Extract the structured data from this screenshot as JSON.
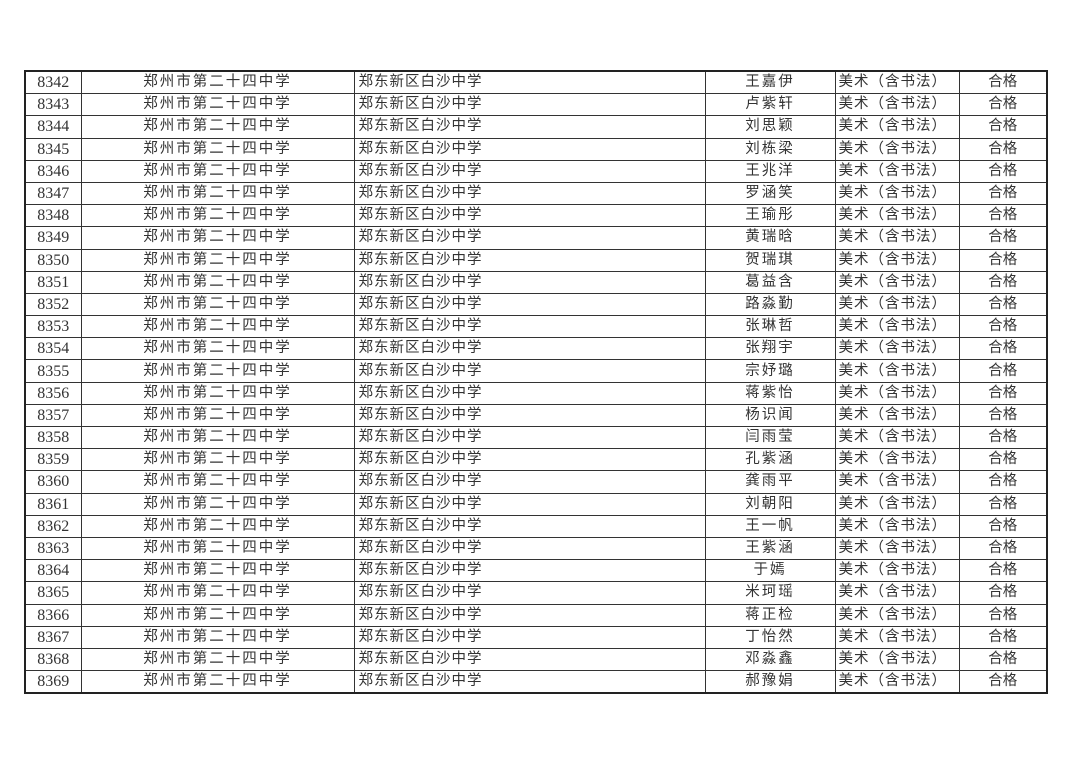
{
  "table": {
    "rows": [
      [
        "8342",
        "郑州市第二十四中学",
        "郑东新区白沙中学",
        "王嘉伊",
        "美术（含书法）",
        "合格"
      ],
      [
        "8343",
        "郑州市第二十四中学",
        "郑东新区白沙中学",
        "卢紫轩",
        "美术（含书法）",
        "合格"
      ],
      [
        "8344",
        "郑州市第二十四中学",
        "郑东新区白沙中学",
        "刘思颖",
        "美术（含书法）",
        "合格"
      ],
      [
        "8345",
        "郑州市第二十四中学",
        "郑东新区白沙中学",
        "刘栋梁",
        "美术（含书法）",
        "合格"
      ],
      [
        "8346",
        "郑州市第二十四中学",
        "郑东新区白沙中学",
        "王兆洋",
        "美术（含书法）",
        "合格"
      ],
      [
        "8347",
        "郑州市第二十四中学",
        "郑东新区白沙中学",
        "罗涵笑",
        "美术（含书法）",
        "合格"
      ],
      [
        "8348",
        "郑州市第二十四中学",
        "郑东新区白沙中学",
        "王瑜彤",
        "美术（含书法）",
        "合格"
      ],
      [
        "8349",
        "郑州市第二十四中学",
        "郑东新区白沙中学",
        "黄瑞晗",
        "美术（含书法）",
        "合格"
      ],
      [
        "8350",
        "郑州市第二十四中学",
        "郑东新区白沙中学",
        "贺瑞琪",
        "美术（含书法）",
        "合格"
      ],
      [
        "8351",
        "郑州市第二十四中学",
        "郑东新区白沙中学",
        "葛益含",
        "美术（含书法）",
        "合格"
      ],
      [
        "8352",
        "郑州市第二十四中学",
        "郑东新区白沙中学",
        "路淼勤",
        "美术（含书法）",
        "合格"
      ],
      [
        "8353",
        "郑州市第二十四中学",
        "郑东新区白沙中学",
        "张琳哲",
        "美术（含书法）",
        "合格"
      ],
      [
        "8354",
        "郑州市第二十四中学",
        "郑东新区白沙中学",
        "张翔宇",
        "美术（含书法）",
        "合格"
      ],
      [
        "8355",
        "郑州市第二十四中学",
        "郑东新区白沙中学",
        "宗妤璐",
        "美术（含书法）",
        "合格"
      ],
      [
        "8356",
        "郑州市第二十四中学",
        "郑东新区白沙中学",
        "蒋紫怡",
        "美术（含书法）",
        "合格"
      ],
      [
        "8357",
        "郑州市第二十四中学",
        "郑东新区白沙中学",
        "杨识闻",
        "美术（含书法）",
        "合格"
      ],
      [
        "8358",
        "郑州市第二十四中学",
        "郑东新区白沙中学",
        "闫雨莹",
        "美术（含书法）",
        "合格"
      ],
      [
        "8359",
        "郑州市第二十四中学",
        "郑东新区白沙中学",
        "孔紫涵",
        "美术（含书法）",
        "合格"
      ],
      [
        "8360",
        "郑州市第二十四中学",
        "郑东新区白沙中学",
        "龚雨平",
        "美术（含书法）",
        "合格"
      ],
      [
        "8361",
        "郑州市第二十四中学",
        "郑东新区白沙中学",
        "刘朝阳",
        "美术（含书法）",
        "合格"
      ],
      [
        "8362",
        "郑州市第二十四中学",
        "郑东新区白沙中学",
        "王一帆",
        "美术（含书法）",
        "合格"
      ],
      [
        "8363",
        "郑州市第二十四中学",
        "郑东新区白沙中学",
        "王紫涵",
        "美术（含书法）",
        "合格"
      ],
      [
        "8364",
        "郑州市第二十四中学",
        "郑东新区白沙中学",
        "于嫣",
        "美术（含书法）",
        "合格"
      ],
      [
        "8365",
        "郑州市第二十四中学",
        "郑东新区白沙中学",
        "米珂瑶",
        "美术（含书法）",
        "合格"
      ],
      [
        "8366",
        "郑州市第二十四中学",
        "郑东新区白沙中学",
        "蒋正检",
        "美术（含书法）",
        "合格"
      ],
      [
        "8367",
        "郑州市第二十四中学",
        "郑东新区白沙中学",
        "丁怡然",
        "美术（含书法）",
        "合格"
      ],
      [
        "8368",
        "郑州市第二十四中学",
        "郑东新区白沙中学",
        "邓淼鑫",
        "美术（含书法）",
        "合格"
      ],
      [
        "8369",
        "郑州市第二十四中学",
        "郑东新区白沙中学",
        "郝豫娟",
        "美术（含书法）",
        "合格"
      ]
    ]
  }
}
